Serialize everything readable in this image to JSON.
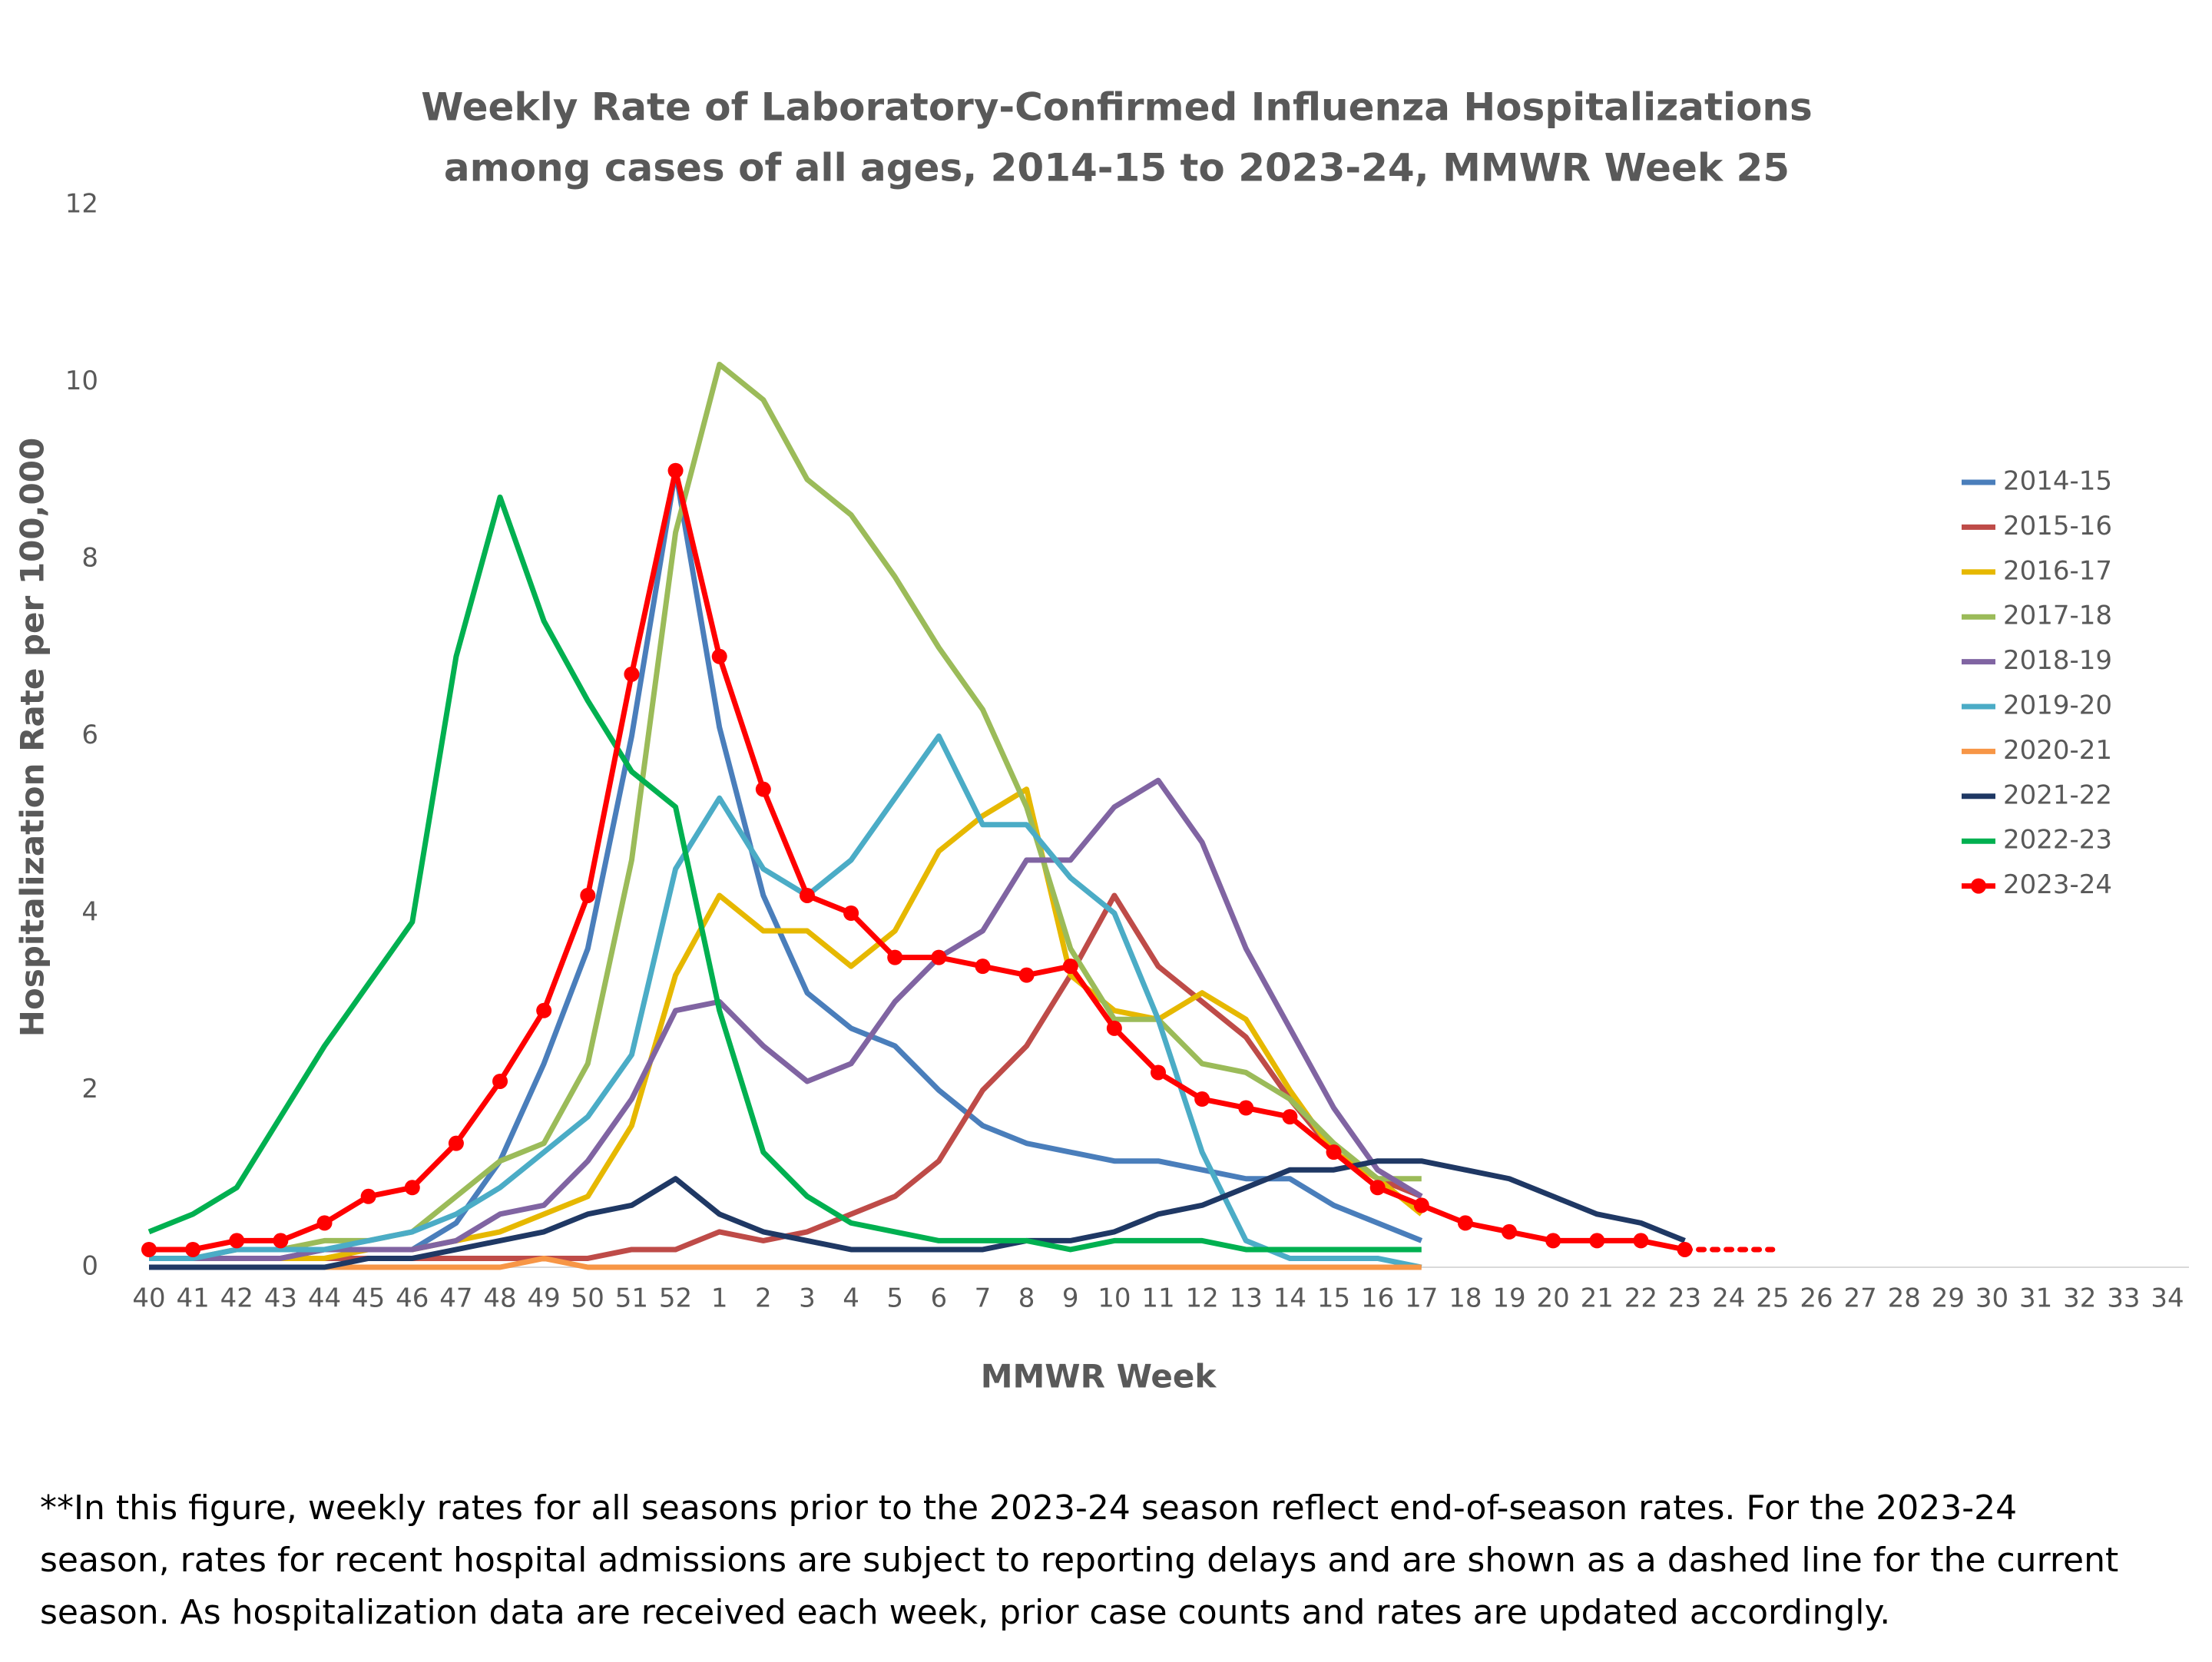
{
  "chart_data": {
    "type": "line",
    "title": [
      "Weekly Rate of Laboratory-Confirmed Influenza Hospitalizations",
      "among cases of all ages, 2014-15 to 2023-24, MMWR Week 25"
    ],
    "x_label": "MMWR Week",
    "y_label": "Hospitalization Rate per 100,000",
    "categories": [
      "40",
      "41",
      "42",
      "43",
      "44",
      "45",
      "46",
      "47",
      "48",
      "49",
      "50",
      "51",
      "52",
      "1",
      "2",
      "3",
      "4",
      "5",
      "6",
      "7",
      "8",
      "9",
      "10",
      "11",
      "12",
      "13",
      "14",
      "15",
      "16",
      "17",
      "18",
      "19",
      "20",
      "21",
      "22",
      "23",
      "24",
      "25",
      "26",
      "27",
      "28",
      "29",
      "30",
      "31",
      "32",
      "33",
      "34"
    ],
    "ylim": [
      0,
      12
    ],
    "yticks": [
      0,
      2,
      4,
      6,
      8,
      10,
      12
    ],
    "grid": false,
    "legend": "right",
    "dashed_from": "23",
    "series": [
      {
        "name": "2014-15",
        "color": "#4a7ebb",
        "values": [
          0.1,
          0.1,
          0.1,
          0.1,
          0.2,
          0.2,
          0.2,
          0.5,
          1.2,
          2.3,
          3.6,
          6.0,
          9.0,
          6.1,
          4.2,
          3.1,
          2.7,
          2.5,
          2.0,
          1.6,
          1.4,
          1.3,
          1.2,
          1.2,
          1.1,
          1.0,
          1.0,
          0.7,
          0.5,
          0.3,
          null,
          null,
          null,
          null,
          null,
          null,
          null,
          null,
          null,
          null,
          null,
          null,
          null,
          null,
          null,
          null,
          null
        ]
      },
      {
        "name": "2015-16",
        "color": "#be4b48",
        "values": [
          0.1,
          0.1,
          0.1,
          0.1,
          0.1,
          0.1,
          0.1,
          0.1,
          0.1,
          0.1,
          0.1,
          0.2,
          0.2,
          0.4,
          0.3,
          0.4,
          0.6,
          0.8,
          1.2,
          2.0,
          2.5,
          3.3,
          4.2,
          3.4,
          3.0,
          2.6,
          1.9,
          1.3,
          1.0,
          0.8,
          null,
          null,
          null,
          null,
          null,
          null,
          null,
          null,
          null,
          null,
          null,
          null,
          null,
          null,
          null,
          null,
          null
        ]
      },
      {
        "name": "2016-17",
        "color": "#e6b800",
        "values": [
          0.1,
          0.1,
          0.1,
          0.1,
          0.1,
          0.2,
          0.2,
          0.3,
          0.4,
          0.6,
          0.8,
          1.6,
          3.3,
          4.2,
          3.8,
          3.8,
          3.4,
          3.8,
          4.7,
          5.1,
          5.4,
          3.3,
          2.9,
          2.8,
          3.1,
          2.8,
          2.0,
          1.3,
          1.0,
          0.6,
          null,
          null,
          null,
          null,
          null,
          null,
          null,
          null,
          null,
          null,
          null,
          null,
          null,
          null,
          null,
          null,
          null
        ]
      },
      {
        "name": "2017-18",
        "color": "#9bbb59",
        "values": [
          0.1,
          0.1,
          0.2,
          0.2,
          0.3,
          0.3,
          0.4,
          0.8,
          1.2,
          1.4,
          2.3,
          4.6,
          8.3,
          10.2,
          9.8,
          8.9,
          8.5,
          7.8,
          7.0,
          6.3,
          5.2,
          3.6,
          2.8,
          2.8,
          2.3,
          2.2,
          1.9,
          1.4,
          1.0,
          1.0,
          null,
          null,
          null,
          null,
          null,
          null,
          null,
          null,
          null,
          null,
          null,
          null,
          null,
          null,
          null,
          null,
          null
        ]
      },
      {
        "name": "2018-19",
        "color": "#8064a2",
        "values": [
          0.1,
          0.1,
          0.1,
          0.1,
          0.2,
          0.2,
          0.2,
          0.3,
          0.6,
          0.7,
          1.2,
          1.9,
          2.9,
          3.0,
          2.5,
          2.1,
          2.3,
          3.0,
          3.5,
          3.8,
          4.6,
          4.6,
          5.2,
          5.5,
          4.8,
          3.6,
          2.7,
          1.8,
          1.1,
          0.8,
          null,
          null,
          null,
          null,
          null,
          null,
          null,
          null,
          null,
          null,
          null,
          null,
          null,
          null,
          null,
          null,
          null
        ]
      },
      {
        "name": "2019-20",
        "color": "#4bacc6",
        "values": [
          0.1,
          0.1,
          0.2,
          0.2,
          0.2,
          0.3,
          0.4,
          0.6,
          0.9,
          1.3,
          1.7,
          2.4,
          4.5,
          5.3,
          4.5,
          4.2,
          4.6,
          5.3,
          6.0,
          5.0,
          5.0,
          4.4,
          4.0,
          2.8,
          1.3,
          0.3,
          0.1,
          0.1,
          0.1,
          0.0,
          null,
          null,
          null,
          null,
          null,
          null,
          null,
          null,
          null,
          null,
          null,
          null,
          null,
          null,
          null,
          null,
          null
        ]
      },
      {
        "name": "2020-21",
        "color": "#f79646",
        "values": [
          0,
          0,
          0,
          0,
          0,
          0,
          0,
          0,
          0,
          0.1,
          0,
          0,
          0,
          0,
          0,
          0,
          0,
          0,
          0,
          0,
          0,
          0,
          0,
          0,
          0,
          0,
          0,
          0,
          0,
          0,
          null,
          null,
          null,
          null,
          null,
          null,
          null,
          null,
          null,
          null,
          null,
          null,
          null,
          null,
          null,
          null,
          null
        ]
      },
      {
        "name": "2021-22",
        "color": "#1f3864",
        "values": [
          0,
          0,
          0,
          0,
          0,
          0.1,
          0.1,
          0.2,
          0.3,
          0.4,
          0.6,
          0.7,
          1.0,
          0.6,
          0.4,
          0.3,
          0.2,
          0.2,
          0.2,
          0.2,
          0.3,
          0.3,
          0.4,
          0.6,
          0.7,
          0.9,
          1.1,
          1.1,
          1.2,
          1.2,
          1.1,
          1.0,
          0.8,
          0.6,
          0.5,
          0.3,
          null,
          null,
          null,
          null,
          null,
          null,
          null,
          null,
          null,
          null,
          null
        ]
      },
      {
        "name": "2022-23",
        "color": "#00b050",
        "values": [
          0.4,
          0.6,
          0.9,
          1.7,
          2.5,
          3.2,
          3.9,
          6.9,
          8.7,
          7.3,
          6.4,
          5.6,
          5.2,
          2.9,
          1.3,
          0.8,
          0.5,
          0.4,
          0.3,
          0.3,
          0.3,
          0.2,
          0.3,
          0.3,
          0.3,
          0.2,
          0.2,
          0.2,
          0.2,
          0.2,
          null,
          null,
          null,
          null,
          null,
          null,
          null,
          null,
          null,
          null,
          null,
          null,
          null,
          null,
          null,
          null,
          null
        ]
      },
      {
        "name": "2023-24",
        "color": "#ff0000",
        "markers": true,
        "values": [
          0.2,
          0.2,
          0.3,
          0.3,
          0.5,
          0.8,
          0.9,
          1.4,
          2.1,
          2.9,
          4.2,
          6.7,
          9.0,
          6.9,
          5.4,
          4.2,
          4.0,
          3.5,
          3.5,
          3.4,
          3.3,
          3.4,
          2.7,
          2.2,
          1.9,
          1.8,
          1.7,
          1.3,
          0.9,
          0.7,
          0.5,
          0.4,
          0.3,
          0.3,
          0.3,
          0.2,
          0.2,
          0.2,
          null,
          null,
          null,
          null,
          null,
          null,
          null,
          null,
          null
        ]
      }
    ],
    "footnote": [
      "**In this figure, weekly rates for all seasons prior to the 2023-24 season reflect end-of-season rates. For the 2023-24",
      "season, rates for recent hospital admissions are subject to reporting delays and are shown as a dashed line for the current",
      "season. As hospitalization data are received each week, prior case counts and rates are updated accordingly."
    ]
  }
}
